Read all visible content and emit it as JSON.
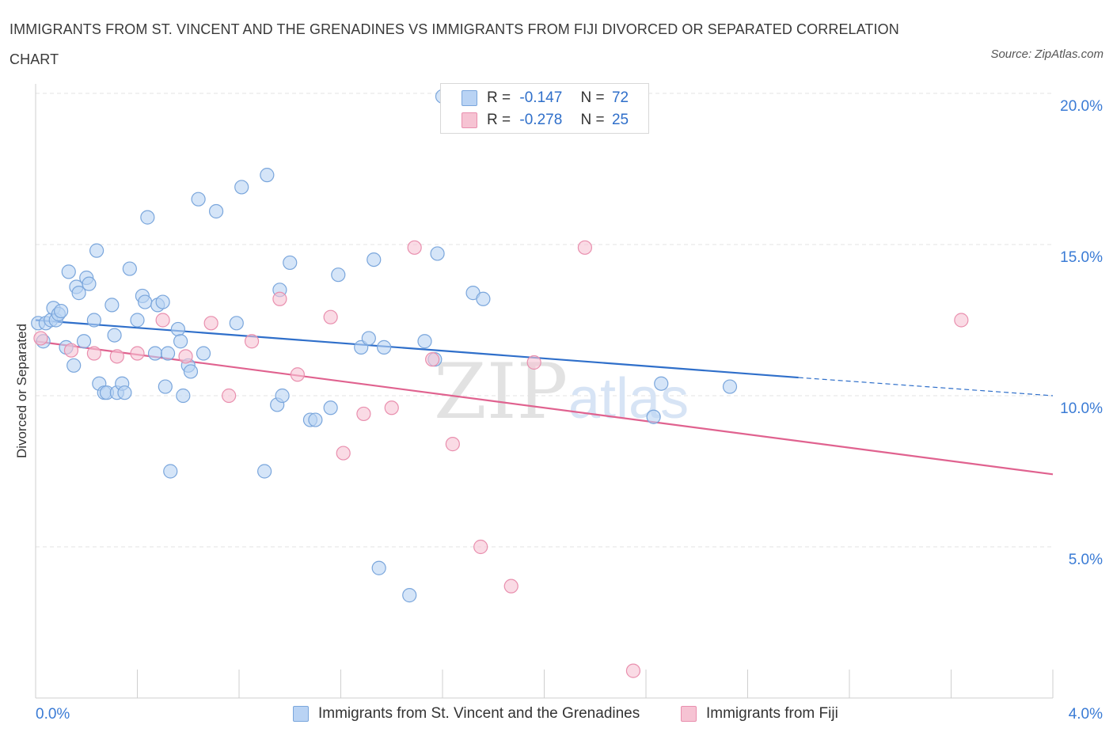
{
  "header": {
    "title": "IMMIGRANTS FROM ST. VINCENT AND THE GRENADINES VS IMMIGRANTS FROM FIJI DIVORCED OR SEPARATED CORRELATION CHART",
    "source": "Source: ZipAtlas.com"
  },
  "legend": {
    "blue": {
      "r_label": "R =",
      "r_value": "-0.147",
      "n_label": "N =",
      "n_value": "72"
    },
    "pink": {
      "r_label": "R =",
      "r_value": "-0.278",
      "n_label": "N =",
      "n_value": "25"
    }
  },
  "watermark": {
    "zip": "ZIP",
    "atlas": "atlas"
  },
  "colors": {
    "blue_fill": "#b9d3f4",
    "blue_stroke": "#7aa6dc",
    "blue_line": "#2f6fca",
    "pink_fill": "#f6c3d3",
    "pink_stroke": "#e98fae",
    "pink_line": "#e0628f",
    "axis_label": "#3a7bd5",
    "grid": "#e3e3e3"
  },
  "chart_data": {
    "type": "scatter",
    "title": "IMMIGRANTS FROM ST. VINCENT AND THE GRENADINES VS IMMIGRANTS FROM FIJI DIVORCED OR SEPARATED CORRELATION CHART",
    "xlabel": "",
    "ylabel": "Divorced or Separated",
    "xlim": [
      0,
      4
    ],
    "ylim": [
      0,
      20
    ],
    "x_tick_labels": [
      "0.0%",
      "4.0%"
    ],
    "y_ticks": [
      {
        "value": 5,
        "label": "5.0%"
      },
      {
        "value": 10,
        "label": "10.0%"
      },
      {
        "value": 15,
        "label": "15.0%"
      },
      {
        "value": 20,
        "label": "20.0%"
      }
    ],
    "legend_position": "top-center",
    "series": [
      {
        "name": "Immigrants from St. Vincent and the Grenadines",
        "color": "#2f6fca",
        "trend": {
          "x0": 0.0,
          "y0": 12.5,
          "x1": 3.0,
          "y1": 10.6,
          "dash_to_x": 4.0,
          "dash_to_y": 10.0
        },
        "points": [
          [
            0.01,
            12.4
          ],
          [
            0.03,
            11.8
          ],
          [
            0.04,
            12.4
          ],
          [
            0.06,
            12.5
          ],
          [
            0.07,
            12.9
          ],
          [
            0.08,
            12.5
          ],
          [
            0.09,
            12.7
          ],
          [
            0.1,
            12.8
          ],
          [
            0.12,
            11.6
          ],
          [
            0.13,
            14.1
          ],
          [
            0.15,
            11.0
          ],
          [
            0.16,
            13.6
          ],
          [
            0.17,
            13.4
          ],
          [
            0.19,
            11.8
          ],
          [
            0.2,
            13.9
          ],
          [
            0.21,
            13.7
          ],
          [
            0.23,
            12.5
          ],
          [
            0.24,
            14.8
          ],
          [
            0.25,
            10.4
          ],
          [
            0.27,
            10.1
          ],
          [
            0.28,
            10.1
          ],
          [
            0.3,
            13.0
          ],
          [
            0.31,
            12.0
          ],
          [
            0.32,
            10.1
          ],
          [
            0.34,
            10.4
          ],
          [
            0.35,
            10.1
          ],
          [
            0.37,
            14.2
          ],
          [
            0.4,
            12.5
          ],
          [
            0.42,
            13.3
          ],
          [
            0.43,
            13.1
          ],
          [
            0.44,
            15.9
          ],
          [
            0.47,
            11.4
          ],
          [
            0.48,
            13.0
          ],
          [
            0.5,
            13.1
          ],
          [
            0.51,
            10.3
          ],
          [
            0.52,
            11.4
          ],
          [
            0.53,
            7.5
          ],
          [
            0.56,
            12.2
          ],
          [
            0.57,
            11.8
          ],
          [
            0.58,
            10.0
          ],
          [
            0.6,
            11.0
          ],
          [
            0.61,
            10.8
          ],
          [
            0.64,
            16.5
          ],
          [
            0.66,
            11.4
          ],
          [
            0.71,
            16.1
          ],
          [
            0.79,
            12.4
          ],
          [
            0.81,
            16.9
          ],
          [
            0.9,
            7.5
          ],
          [
            0.91,
            17.3
          ],
          [
            0.95,
            9.7
          ],
          [
            0.96,
            13.5
          ],
          [
            0.97,
            10.0
          ],
          [
            1.0,
            14.4
          ],
          [
            1.08,
            9.2
          ],
          [
            1.1,
            9.2
          ],
          [
            1.16,
            9.6
          ],
          [
            1.19,
            14.0
          ],
          [
            1.28,
            11.6
          ],
          [
            1.31,
            11.9
          ],
          [
            1.33,
            14.5
          ],
          [
            1.35,
            4.3
          ],
          [
            1.37,
            11.6
          ],
          [
            1.47,
            3.4
          ],
          [
            1.53,
            11.8
          ],
          [
            1.57,
            11.2
          ],
          [
            1.58,
            14.7
          ],
          [
            1.6,
            19.9
          ],
          [
            1.72,
            13.4
          ],
          [
            1.76,
            13.2
          ],
          [
            2.46,
            10.4
          ],
          [
            2.43,
            9.3
          ],
          [
            2.73,
            10.3
          ]
        ]
      },
      {
        "name": "Immigrants from Fiji",
        "color": "#e0628f",
        "trend": {
          "x0": 0.0,
          "y0": 11.8,
          "x1": 4.0,
          "y1": 7.4
        },
        "points": [
          [
            0.02,
            11.9
          ],
          [
            0.14,
            11.5
          ],
          [
            0.23,
            11.4
          ],
          [
            0.32,
            11.3
          ],
          [
            0.4,
            11.4
          ],
          [
            0.5,
            12.5
          ],
          [
            0.59,
            11.3
          ],
          [
            0.69,
            12.4
          ],
          [
            0.76,
            10.0
          ],
          [
            0.85,
            11.8
          ],
          [
            0.96,
            13.2
          ],
          [
            1.03,
            10.7
          ],
          [
            1.16,
            12.6
          ],
          [
            1.21,
            8.1
          ],
          [
            1.29,
            9.4
          ],
          [
            1.4,
            9.6
          ],
          [
            1.49,
            14.9
          ],
          [
            1.56,
            11.2
          ],
          [
            1.64,
            8.4
          ],
          [
            1.75,
            5.0
          ],
          [
            1.87,
            3.7
          ],
          [
            1.96,
            11.1
          ],
          [
            2.16,
            14.9
          ],
          [
            2.35,
            0.9
          ],
          [
            3.64,
            12.5
          ]
        ]
      }
    ]
  },
  "bottom_legend": {
    "blue_label": "Immigrants from St. Vincent and the Grenadines",
    "pink_label": "Immigrants from Fiji"
  }
}
